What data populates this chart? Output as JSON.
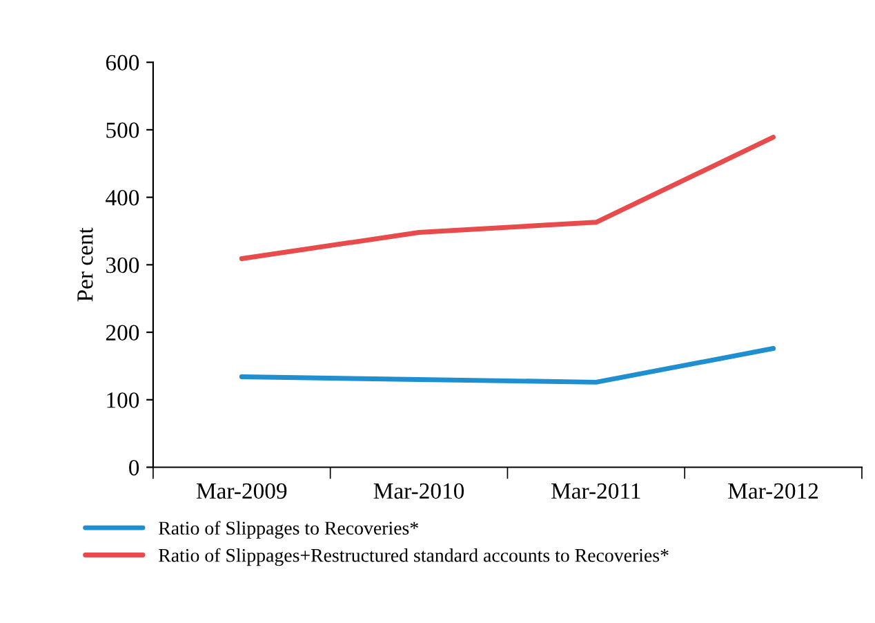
{
  "chart_data": {
    "type": "line",
    "ylabel": "Per cent",
    "categories": [
      "Mar-2009",
      "Mar-2010",
      "Mar-2011",
      "Mar-2012"
    ],
    "series": [
      {
        "name": "Ratio of Slippages to Recoveries*",
        "color": "#1f8fcf",
        "values": [
          134,
          130,
          126,
          176
        ]
      },
      {
        "name": "Ratio of Slippages+Restructured standard accounts to Recoveries*",
        "color": "#e84b4b",
        "values": [
          309,
          348,
          363,
          489
        ]
      }
    ],
    "ylim": [
      0,
      600
    ],
    "yticks": [
      0,
      100,
      200,
      300,
      400,
      500,
      600
    ],
    "grid": false,
    "legend": "bottom",
    "marker": "none",
    "line_style": "solid"
  }
}
